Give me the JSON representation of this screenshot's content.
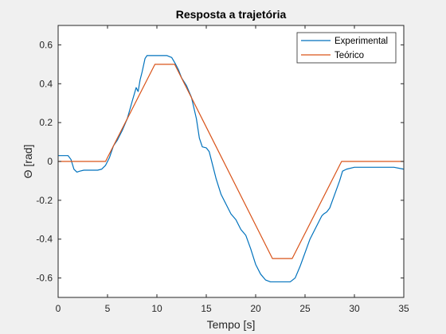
{
  "chart_data": {
    "type": "line",
    "title": "Resposta a trajetória",
    "xlabel": "Tempo [s]",
    "ylabel": "Θ [rad]",
    "xlim": [
      0,
      35
    ],
    "ylim": [
      -0.7,
      0.7
    ],
    "xticks": [
      0,
      5,
      10,
      15,
      20,
      25,
      30,
      35
    ],
    "yticks": [
      -0.6,
      -0.4,
      -0.2,
      0,
      0.2,
      0.4,
      0.6
    ],
    "xtick_labels": [
      "0",
      "5",
      "10",
      "15",
      "20",
      "25",
      "30",
      "35"
    ],
    "ytick_labels": [
      "-0.6",
      "-0.4",
      "-0.2",
      "0",
      "0.2",
      "0.4",
      "0.6"
    ],
    "grid": false,
    "legend_position": "top-right",
    "series": [
      {
        "name": "Experimental",
        "color": "#0072bd",
        "x": [
          0,
          0.4,
          1.0,
          1.3,
          1.6,
          1.9,
          2.2,
          2.6,
          3.0,
          3.5,
          4.0,
          4.4,
          4.8,
          5.2,
          5.6,
          6.0,
          6.5,
          7.0,
          7.5,
          7.9,
          8.1,
          8.3,
          8.5,
          8.8,
          9.0,
          9.2,
          9.5,
          10.0,
          10.5,
          11.0,
          11.5,
          11.9,
          12.2,
          12.5,
          13.0,
          13.5,
          14.0,
          14.3,
          14.6,
          15.0,
          15.3,
          15.6,
          16.0,
          16.5,
          17.0,
          17.5,
          18.0,
          18.5,
          19.0,
          19.5,
          20.0,
          20.5,
          21.0,
          21.5,
          22.0,
          22.5,
          23.0,
          23.5,
          24.0,
          24.5,
          25.0,
          25.5,
          26.0,
          26.5,
          26.7,
          26.9,
          27.2,
          27.5,
          28.0,
          28.5,
          28.8,
          29.2,
          30.0,
          31.0,
          32.0,
          33.0,
          34.0,
          35.0
        ],
        "y": [
          0.03,
          0.03,
          0.03,
          0.01,
          -0.04,
          -0.055,
          -0.05,
          -0.045,
          -0.045,
          -0.045,
          -0.045,
          -0.04,
          -0.02,
          0.02,
          0.08,
          0.11,
          0.16,
          0.22,
          0.31,
          0.38,
          0.36,
          0.42,
          0.46,
          0.53,
          0.545,
          0.545,
          0.545,
          0.545,
          0.545,
          0.545,
          0.535,
          0.5,
          0.47,
          0.43,
          0.39,
          0.33,
          0.22,
          0.12,
          0.075,
          0.07,
          0.05,
          -0.01,
          -0.09,
          -0.17,
          -0.22,
          -0.27,
          -0.3,
          -0.35,
          -0.38,
          -0.45,
          -0.53,
          -0.58,
          -0.61,
          -0.62,
          -0.62,
          -0.62,
          -0.62,
          -0.62,
          -0.6,
          -0.54,
          -0.47,
          -0.4,
          -0.35,
          -0.3,
          -0.28,
          -0.27,
          -0.26,
          -0.24,
          -0.17,
          -0.1,
          -0.05,
          -0.04,
          -0.03,
          -0.03,
          -0.03,
          -0.03,
          -0.03,
          -0.04
        ]
      },
      {
        "name": "Teórico",
        "color": "#d95319",
        "x": [
          0,
          4.8,
          9.8,
          11.8,
          21.7,
          23.7,
          28.7,
          35
        ],
        "y": [
          0,
          0,
          0.5,
          0.5,
          -0.5,
          -0.5,
          0,
          0
        ]
      }
    ]
  }
}
